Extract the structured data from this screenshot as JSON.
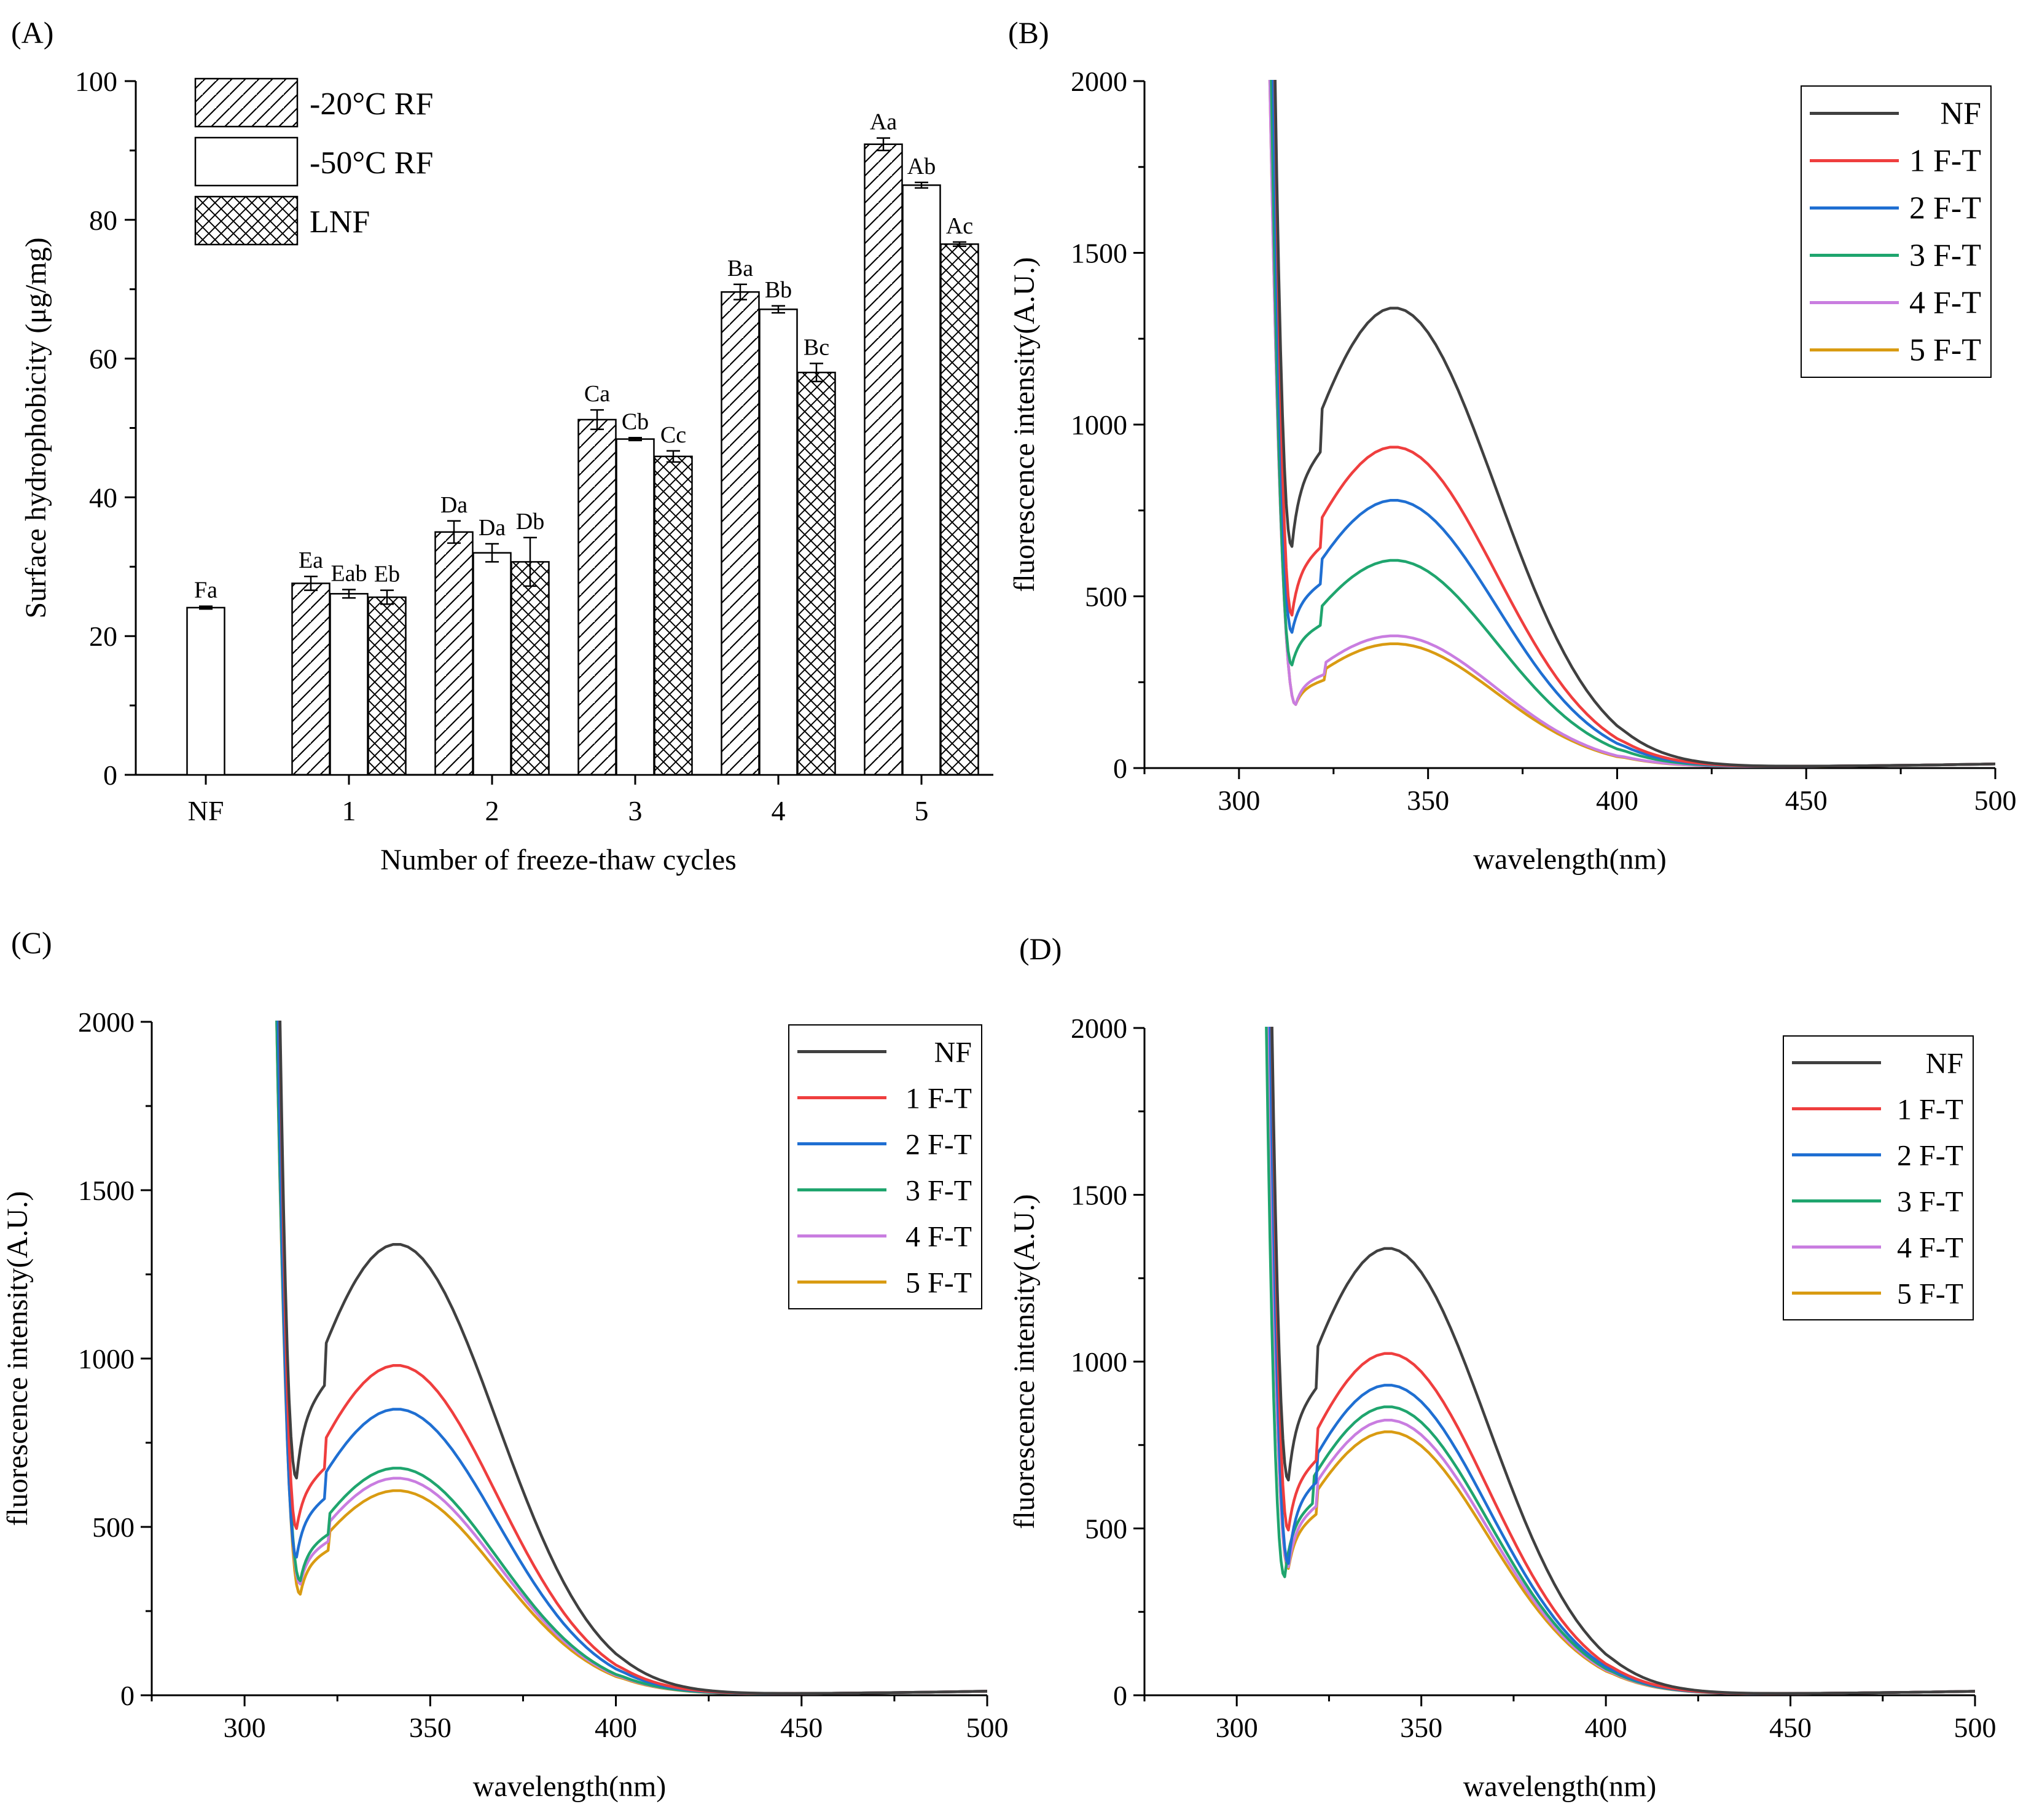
{
  "figure": {
    "panels": [
      "A",
      "B",
      "C",
      "D"
    ]
  },
  "chart_data": [
    {
      "id": "A",
      "panel_label": "(A)",
      "type": "bar",
      "xlabel": "Number of freeze-thaw cycles",
      "ylabel": "Surface hydrophobicity (μg/mg)",
      "ylim": [
        0,
        100
      ],
      "yticks": [
        0,
        20,
        40,
        60,
        80,
        100
      ],
      "categories": [
        "NF",
        "1",
        "2",
        "3",
        "4",
        "5"
      ],
      "legend_position": "top-left",
      "series": [
        {
          "name": "-20°C RF",
          "pattern": "hatch",
          "values": [
            null,
            27.6,
            35.0,
            51.2,
            69.6,
            90.9
          ],
          "errors": [
            null,
            1.0,
            1.6,
            1.4,
            1.1,
            0.9
          ],
          "labels": [
            null,
            "Ea",
            "Da",
            "Ca",
            "Ba",
            "Aa"
          ]
        },
        {
          "name": "-50°C RF",
          "pattern": "plain",
          "values": [
            24.1,
            26.1,
            32.0,
            48.4,
            67.1,
            85.0
          ],
          "errors": [
            0.2,
            0.6,
            1.3,
            0.2,
            0.5,
            0.4
          ],
          "labels": [
            "Fa",
            "Eab",
            "Da",
            "Cb",
            "Bb",
            "Ab"
          ]
        },
        {
          "name": "LNF",
          "pattern": "crosshatch",
          "values": [
            null,
            25.6,
            30.7,
            45.9,
            58.0,
            76.5
          ],
          "errors": [
            null,
            1.0,
            3.5,
            0.8,
            1.3,
            0.3
          ],
          "labels": [
            null,
            "Eb",
            "Db",
            "Cc",
            "Bc",
            "Ac"
          ]
        }
      ]
    },
    {
      "id": "B",
      "panel_label": "(B)",
      "type": "line",
      "xlabel": "wavelength(nm)",
      "ylabel": "fluorescence intensity(A.U.)",
      "xlim": [
        275,
        500
      ],
      "ylim": [
        0,
        2000
      ],
      "xticks": [
        300,
        350,
        400,
        450,
        500
      ],
      "yticks": [
        0,
        500,
        1000,
        1500,
        2000
      ],
      "legend_position": "top-right",
      "series": [
        {
          "name": "NF",
          "color": "#404040",
          "peak": 1340,
          "min": 645,
          "min_x": 314,
          "onset": 309
        },
        {
          "name": "1 F-T",
          "color": "#ef3e3e",
          "peak": 935,
          "min": 445,
          "min_x": 314,
          "onset": 309
        },
        {
          "name": "2 F-T",
          "color": "#1f6fd2",
          "peak": 780,
          "min": 395,
          "min_x": 314,
          "onset": 308.5
        },
        {
          "name": "3 F-T",
          "color": "#1fa56e",
          "peak": 605,
          "min": 300,
          "min_x": 314,
          "onset": 308
        },
        {
          "name": "4 F-T",
          "color": "#c97de0",
          "peak": 385,
          "min": 185,
          "min_x": 315,
          "onset": 307.5
        },
        {
          "name": "5 F-T",
          "color": "#d99b12",
          "peak": 362,
          "min": 185,
          "min_x": 315,
          "onset": 307.5
        }
      ]
    },
    {
      "id": "C",
      "panel_label": "(C)",
      "type": "line",
      "xlabel": "wavelength(nm)",
      "ylabel": "fluorescence intensity(A.U.)",
      "xlim": [
        275,
        500
      ],
      "ylim": [
        0,
        2000
      ],
      "xticks": [
        300,
        350,
        400,
        450,
        500
      ],
      "yticks": [
        0,
        500,
        1000,
        1500,
        2000
      ],
      "legend_position": "top-right",
      "series": [
        {
          "name": "NF",
          "color": "#404040",
          "peak": 1340,
          "min": 645,
          "min_x": 314,
          "onset": 309
        },
        {
          "name": "1 F-T",
          "color": "#ef3e3e",
          "peak": 980,
          "min": 495,
          "min_x": 314,
          "onset": 309
        },
        {
          "name": "2 F-T",
          "color": "#1f6fd2",
          "peak": 850,
          "min": 410,
          "min_x": 314,
          "onset": 308.5
        },
        {
          "name": "3 F-T",
          "color": "#1fa56e",
          "peak": 675,
          "min": 340,
          "min_x": 315,
          "onset": 308
        },
        {
          "name": "4 F-T",
          "color": "#c97de0",
          "peak": 645,
          "min": 330,
          "min_x": 315,
          "onset": 308
        },
        {
          "name": "5 F-T",
          "color": "#d99b12",
          "peak": 608,
          "min": 300,
          "min_x": 315,
          "onset": 308
        }
      ]
    },
    {
      "id": "D",
      "panel_label": "(D)",
      "type": "line",
      "xlabel": "wavelength(nm)",
      "ylabel": "fluorescence intensity(A.U.)",
      "xlim": [
        275,
        500
      ],
      "ylim": [
        0,
        2000
      ],
      "xticks": [
        300,
        350,
        400,
        450,
        500
      ],
      "yticks": [
        0,
        500,
        1000,
        1500,
        2000
      ],
      "legend_position": "top-right",
      "series": [
        {
          "name": "NF",
          "color": "#404040",
          "peak": 1340,
          "min": 645,
          "min_x": 314,
          "onset": 309
        },
        {
          "name": "1 F-T",
          "color": "#ef3e3e",
          "peak": 1025,
          "min": 495,
          "min_x": 314,
          "onset": 309
        },
        {
          "name": "2 F-T",
          "color": "#1f6fd2",
          "peak": 930,
          "min": 395,
          "min_x": 314,
          "onset": 308.5
        },
        {
          "name": "3 F-T",
          "color": "#1fa56e",
          "peak": 865,
          "min": 355,
          "min_x": 313,
          "onset": 307.5
        },
        {
          "name": "4 F-T",
          "color": "#c97de0",
          "peak": 825,
          "min": 385,
          "min_x": 314,
          "onset": 308
        },
        {
          "name": "5 F-T",
          "color": "#d99b12",
          "peak": 790,
          "min": 380,
          "min_x": 314,
          "onset": 308
        }
      ]
    }
  ]
}
